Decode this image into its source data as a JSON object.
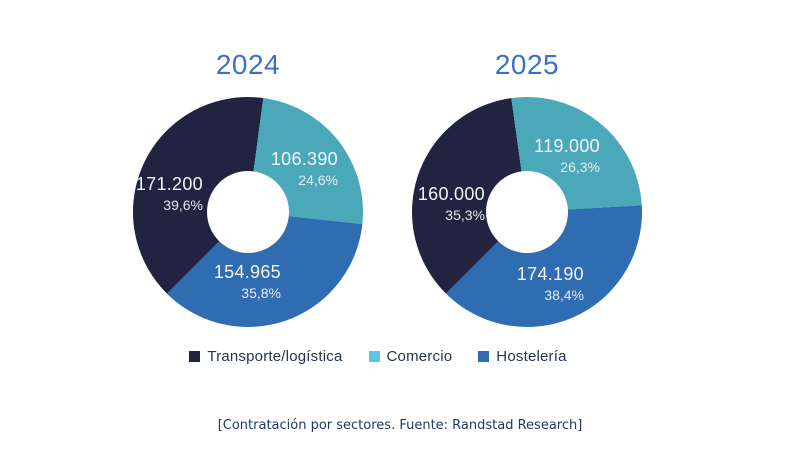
{
  "caption": "[Contratación por sectores. Fuente: Randstad Research]",
  "charts": [
    {
      "title": "2024",
      "slices": [
        {
          "label": "Transporte/logística",
          "value": "171.200",
          "pct": "39,6%"
        },
        {
          "label": "Comercio",
          "value": "106.390",
          "pct": "24,6%"
        },
        {
          "label": "Hostelería",
          "value": "154.965",
          "pct": "35,8%"
        }
      ]
    },
    {
      "title": "2025",
      "slices": [
        {
          "label": "Transporte/logística",
          "value": "160.000",
          "pct": "35,3%"
        },
        {
          "label": "Comercio",
          "value": "119.000",
          "pct": "26,3%"
        },
        {
          "label": "Hostelería",
          "value": "174.190",
          "pct": "38,4%"
        }
      ]
    }
  ],
  "legend": {
    "items": [
      {
        "label": "Transporte/logística",
        "swatch": "#212341"
      },
      {
        "label": "Comercio",
        "swatch": "#55C8EA"
      },
      {
        "label": "Hostelería",
        "swatch": "#2E6DB4"
      }
    ]
  },
  "colors": {
    "title": "#3C70C8",
    "legend_text": "#26324E",
    "caption_text": "#1F3864",
    "slice_navy": "#212341",
    "slice_teal": "#4BA8B8",
    "slice_blue": "#2F6CB1"
  },
  "chart_data": [
    {
      "type": "pie",
      "subtype": "donut",
      "title": "2024",
      "labels": [
        "Transporte/logística",
        "Comercio",
        "Hostelería"
      ],
      "values": [
        171200,
        106390,
        154965
      ],
      "percent": [
        39.6,
        24.6,
        35.8
      ],
      "value_labels": [
        "171.200",
        "106.390",
        "154.965"
      ],
      "percent_labels": [
        "39,6%",
        "24,6%",
        "35,8%"
      ],
      "colors": [
        "#212341",
        "#4BA8B8",
        "#2F6CB1"
      ],
      "start_angle_deg": 225,
      "hole_ratio": 0.36,
      "legend_position": "bottom"
    },
    {
      "type": "pie",
      "subtype": "donut",
      "title": "2025",
      "labels": [
        "Transporte/logística",
        "Comercio",
        "Hostelería"
      ],
      "values": [
        160000,
        119000,
        174190
      ],
      "percent": [
        35.3,
        26.3,
        38.4
      ],
      "value_labels": [
        "160.000",
        "119.000",
        "174.190"
      ],
      "percent_labels": [
        "35,3%",
        "26,3%",
        "38,4%"
      ],
      "colors": [
        "#212341",
        "#4BA8B8",
        "#2F6CB1"
      ],
      "start_angle_deg": 225,
      "hole_ratio": 0.36,
      "legend_position": "bottom"
    }
  ]
}
